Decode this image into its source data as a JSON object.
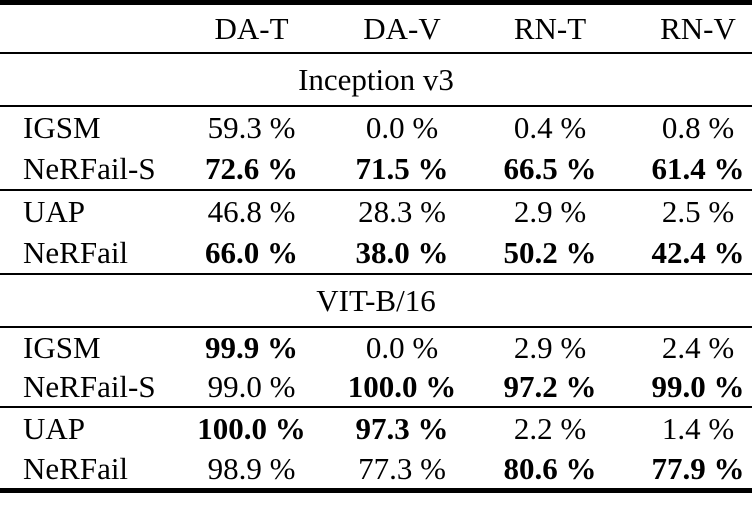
{
  "table": {
    "columns": [
      "",
      "DA-T",
      "DA-V",
      "RN-T",
      "RN-V"
    ],
    "unit": "%",
    "sections": [
      {
        "title": "Inception v3",
        "rows": [
          {
            "label": "IGSM",
            "values": [
              {
                "text": "59.3 %",
                "bold": false
              },
              {
                "text": "0.0 %",
                "bold": false
              },
              {
                "text": "0.4 %",
                "bold": false
              },
              {
                "text": "0.8 %",
                "bold": false
              }
            ]
          },
          {
            "label": "NeRFail-S",
            "values": [
              {
                "text": "72.6 %",
                "bold": true
              },
              {
                "text": "71.5 %",
                "bold": true
              },
              {
                "text": "66.5 %",
                "bold": true
              },
              {
                "text": "61.4 %",
                "bold": true
              }
            ]
          },
          {
            "label": "UAP",
            "values": [
              {
                "text": "46.8 %",
                "bold": false
              },
              {
                "text": "28.3 %",
                "bold": false
              },
              {
                "text": "2.9 %",
                "bold": false
              },
              {
                "text": "2.5 %",
                "bold": false
              }
            ]
          },
          {
            "label": "NeRFail",
            "values": [
              {
                "text": "66.0 %",
                "bold": true
              },
              {
                "text": "38.0 %",
                "bold": true
              },
              {
                "text": "50.2 %",
                "bold": true
              },
              {
                "text": "42.4 %",
                "bold": true
              }
            ]
          }
        ]
      },
      {
        "title": "VIT-B/16",
        "rows": [
          {
            "label": "IGSM",
            "values": [
              {
                "text": "99.9 %",
                "bold": true
              },
              {
                "text": "0.0 %",
                "bold": false
              },
              {
                "text": "2.9 %",
                "bold": false
              },
              {
                "text": "2.4 %",
                "bold": false
              }
            ]
          },
          {
            "label": "NeRFail-S",
            "values": [
              {
                "text": "99.0 %",
                "bold": false
              },
              {
                "text": "100.0 %",
                "bold": true
              },
              {
                "text": "97.2 %",
                "bold": true
              },
              {
                "text": "99.0 %",
                "bold": true
              }
            ]
          },
          {
            "label": "UAP",
            "values": [
              {
                "text": "100.0 %",
                "bold": true
              },
              {
                "text": "97.3 %",
                "bold": true
              },
              {
                "text": "2.2 %",
                "bold": false
              },
              {
                "text": "1.4 %",
                "bold": false
              }
            ]
          },
          {
            "label": "NeRFail",
            "values": [
              {
                "text": "98.9 %",
                "bold": false
              },
              {
                "text": "77.3 %",
                "bold": false
              },
              {
                "text": "80.6 %",
                "bold": true
              },
              {
                "text": "77.9 %",
                "bold": true
              }
            ]
          }
        ]
      }
    ]
  }
}
